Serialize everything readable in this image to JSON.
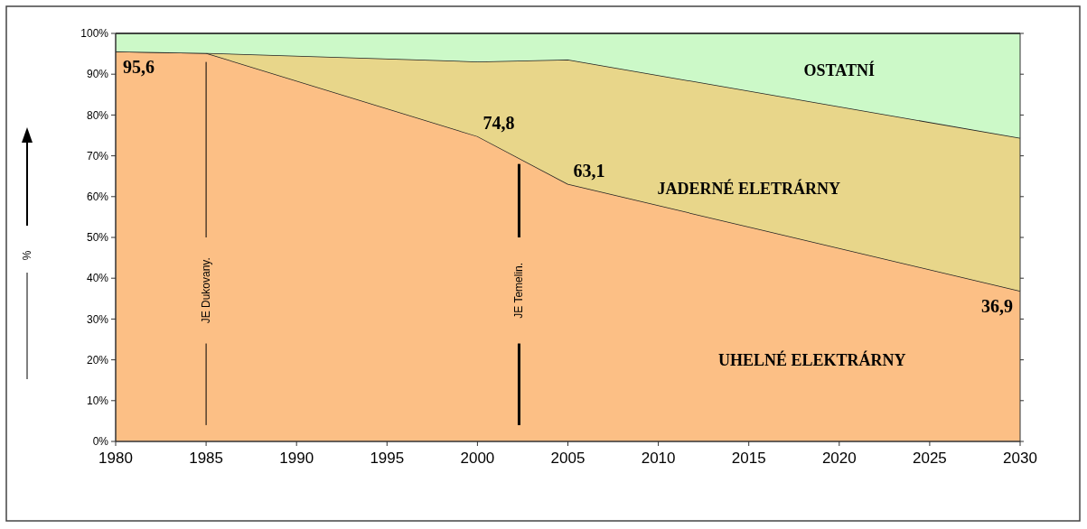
{
  "chart_data": {
    "type": "area",
    "stacked": true,
    "ylabel": "%",
    "x": [
      1980,
      1985,
      2000,
      2005,
      2030
    ],
    "series": [
      {
        "name": "UHELNÉ ELEKTRÁRNY",
        "color": "#fcbf85",
        "values": [
          95.6,
          95.2,
          74.8,
          63.1,
          36.9
        ],
        "value_labels": [
          "95,6",
          null,
          "74,8",
          "63,1",
          "36,9"
        ]
      },
      {
        "name": "JADERNÉ ELETRÁRNY",
        "color": "#e8d68a",
        "values": [
          0,
          0,
          18.3,
          30.5,
          37.5
        ]
      },
      {
        "name": "OSTATNÍ",
        "color": "#ccf9c8",
        "values": [
          4.4,
          4.8,
          6.9,
          6.4,
          25.6
        ]
      }
    ],
    "xlim": [
      1980,
      2030
    ],
    "xticks": [
      1980,
      1985,
      1990,
      1995,
      2000,
      2005,
      2010,
      2015,
      2020,
      2025,
      2030
    ],
    "ylim": [
      0,
      100
    ],
    "yticks": [
      {
        "value": 0,
        "label": "0%"
      },
      {
        "value": 10,
        "label": "10%"
      },
      {
        "value": 20,
        "label": "20%"
      },
      {
        "value": 30,
        "label": "30%"
      },
      {
        "value": 40,
        "label": "40%"
      },
      {
        "value": 50,
        "label": "50%"
      },
      {
        "value": 60,
        "label": "60%"
      },
      {
        "value": 70,
        "label": "70%"
      },
      {
        "value": 80,
        "label": "80%"
      },
      {
        "value": 90,
        "label": "90%"
      },
      {
        "value": 100,
        "label": "100%"
      }
    ],
    "ref_lines": [
      {
        "axis": "x",
        "value": 1985,
        "label": "JE Dukovany."
      },
      {
        "axis": "x",
        "value": 2002.3,
        "label": "JE Temelin."
      }
    ],
    "grid": false
  }
}
